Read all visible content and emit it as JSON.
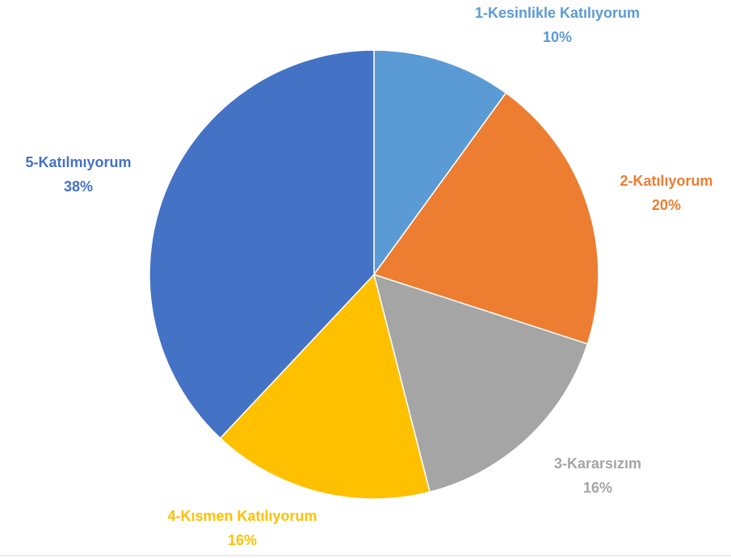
{
  "chart_data": {
    "type": "pie",
    "categories": [
      "1-Kesinlikle Katılıyorum",
      "2-Katılıyorum",
      "3-Kararsızım",
      "4-Kısmen Katılıyorum",
      "5-Katılmıyorum"
    ],
    "values": [
      10,
      20,
      16,
      16,
      38
    ],
    "value_labels": [
      "10%",
      "20%",
      "16%",
      "16%",
      "38%"
    ],
    "colors": [
      "#5B9BD5",
      "#ED7D31",
      "#A5A5A5",
      "#FFC000",
      "#4472C4"
    ]
  }
}
